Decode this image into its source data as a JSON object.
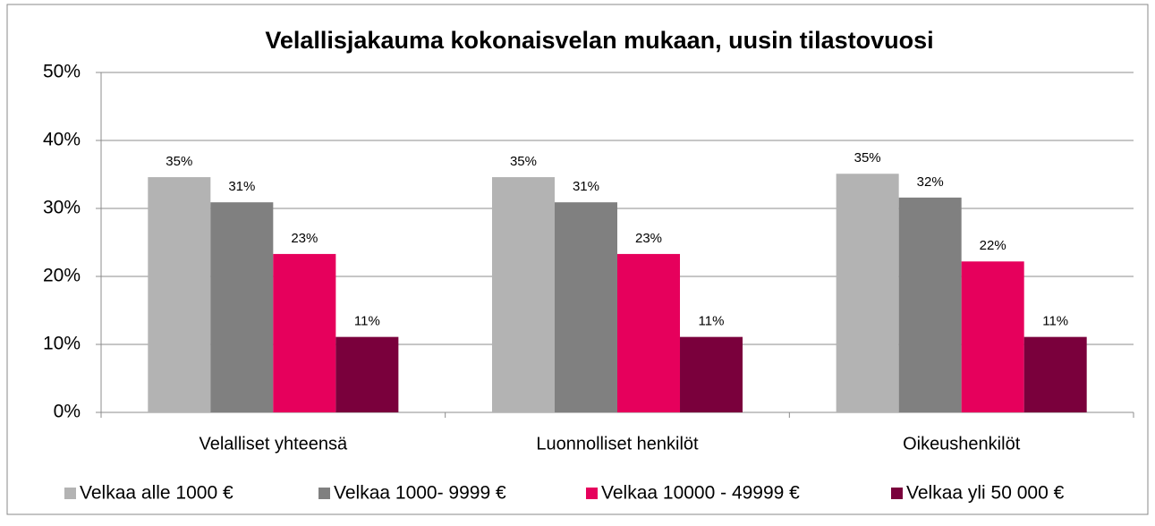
{
  "chart_data": {
    "type": "bar",
    "title": "Velallisjakauma kokonaisvelan mukaan, uusin tilastovuosi",
    "categories": [
      "Velalliset yhteensä",
      "Luonnolliset henkilöt",
      "Oikeushenkilöt"
    ],
    "series": [
      {
        "name": "Velkaa alle 1000 €",
        "color": "#b3b3b3",
        "values": [
          34.6,
          34.6,
          35.1
        ],
        "value_labels": [
          "35%",
          "35%",
          "35%"
        ]
      },
      {
        "name": "Velkaa 1000- 9999 €",
        "color": "#808080",
        "values": [
          30.9,
          30.9,
          31.6
        ],
        "value_labels": [
          "31%",
          "31%",
          "32%"
        ]
      },
      {
        "name": "Velkaa 10000 - 49999 €",
        "color": "#e6005c",
        "values": [
          23.3,
          23.3,
          22.2
        ],
        "value_labels": [
          "23%",
          "23%",
          "22%"
        ]
      },
      {
        "name": "Velkaa yli 50 000 €",
        "color": "#7a003c",
        "values": [
          11.1,
          11.1,
          11.1
        ],
        "value_labels": [
          "11%",
          "11%",
          "11%"
        ]
      }
    ],
    "ylim": [
      0,
      50
    ],
    "yticks": [
      {
        "value": 0,
        "label": "0%"
      },
      {
        "value": 10,
        "label": "10%"
      },
      {
        "value": 20,
        "label": "20%"
      },
      {
        "value": 30,
        "label": "30%"
      },
      {
        "value": 40,
        "label": "40%"
      },
      {
        "value": 50,
        "label": "50%"
      }
    ],
    "grid": true,
    "legend": "bottom"
  }
}
